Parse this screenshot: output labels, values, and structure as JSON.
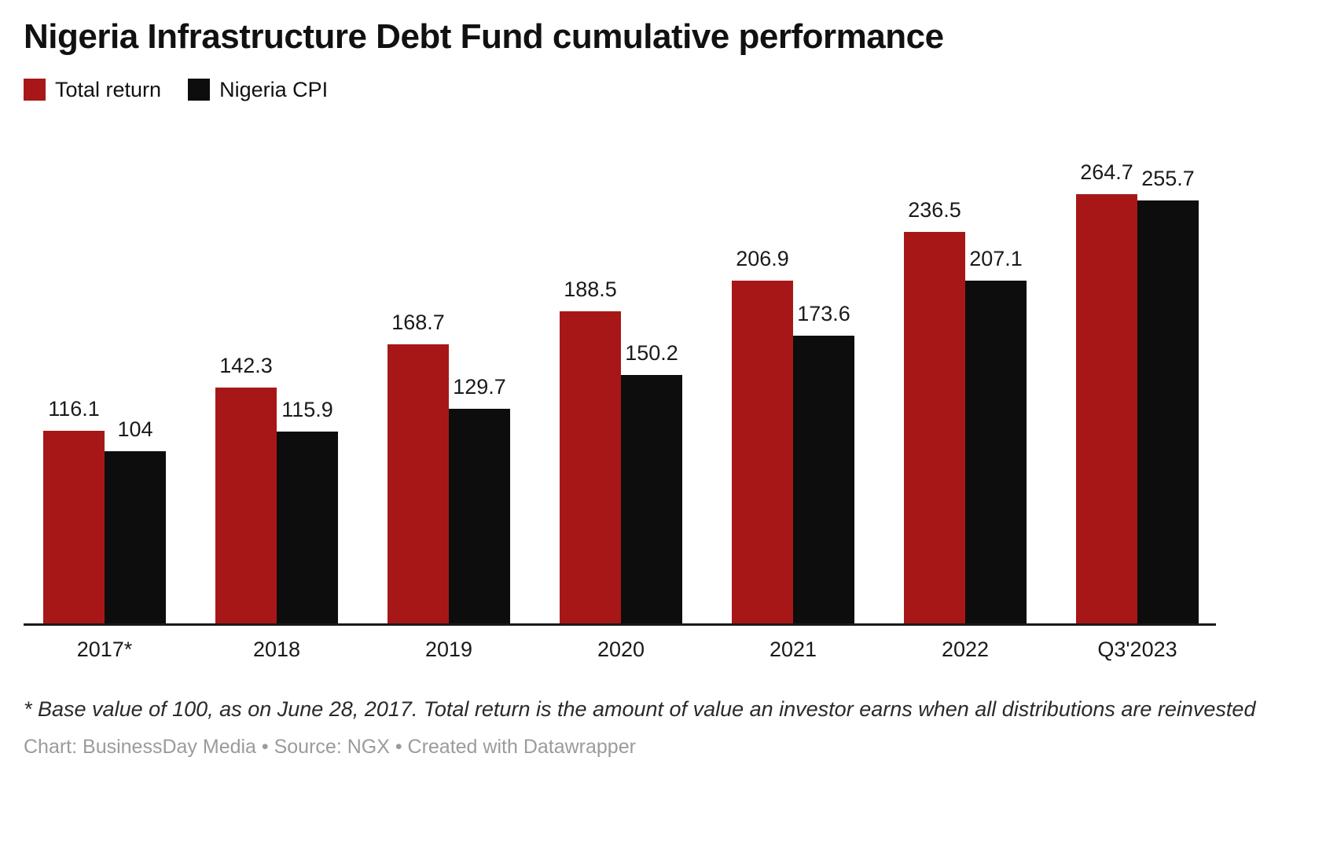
{
  "title": "Nigeria Infrastructure Debt Fund cumulative performance",
  "legend": {
    "items": [
      {
        "label": "Total return",
        "color": "#a81717"
      },
      {
        "label": "Nigeria CPI",
        "color": "#0d0d0d"
      }
    ]
  },
  "footnote": "* Base value of 100, as on June 28, 2017. Total return is the amount of value an investor earns when all distributions are reinvested",
  "attribution": "Chart: BusinessDay Media • Source: NGX • Created with Datawrapper",
  "chart_data": {
    "type": "bar",
    "categories": [
      "2017*",
      "2018",
      "2019",
      "2020",
      "2021",
      "2022",
      "Q3'2023"
    ],
    "series": [
      {
        "name": "Total return",
        "color": "#a81717",
        "values": [
          116.1,
          142.3,
          168.7,
          188.5,
          206.9,
          236.5,
          264.7
        ]
      },
      {
        "name": "Nigeria CPI",
        "color": "#0d0d0d",
        "values": [
          104,
          115.9,
          129.7,
          150.2,
          173.6,
          207.1,
          255.7
        ]
      }
    ],
    "value_labels": true,
    "ylim": [
      0,
      280
    ],
    "grid": false,
    "legend_position": "top-left",
    "baseline_color": "#1a1a1a"
  }
}
